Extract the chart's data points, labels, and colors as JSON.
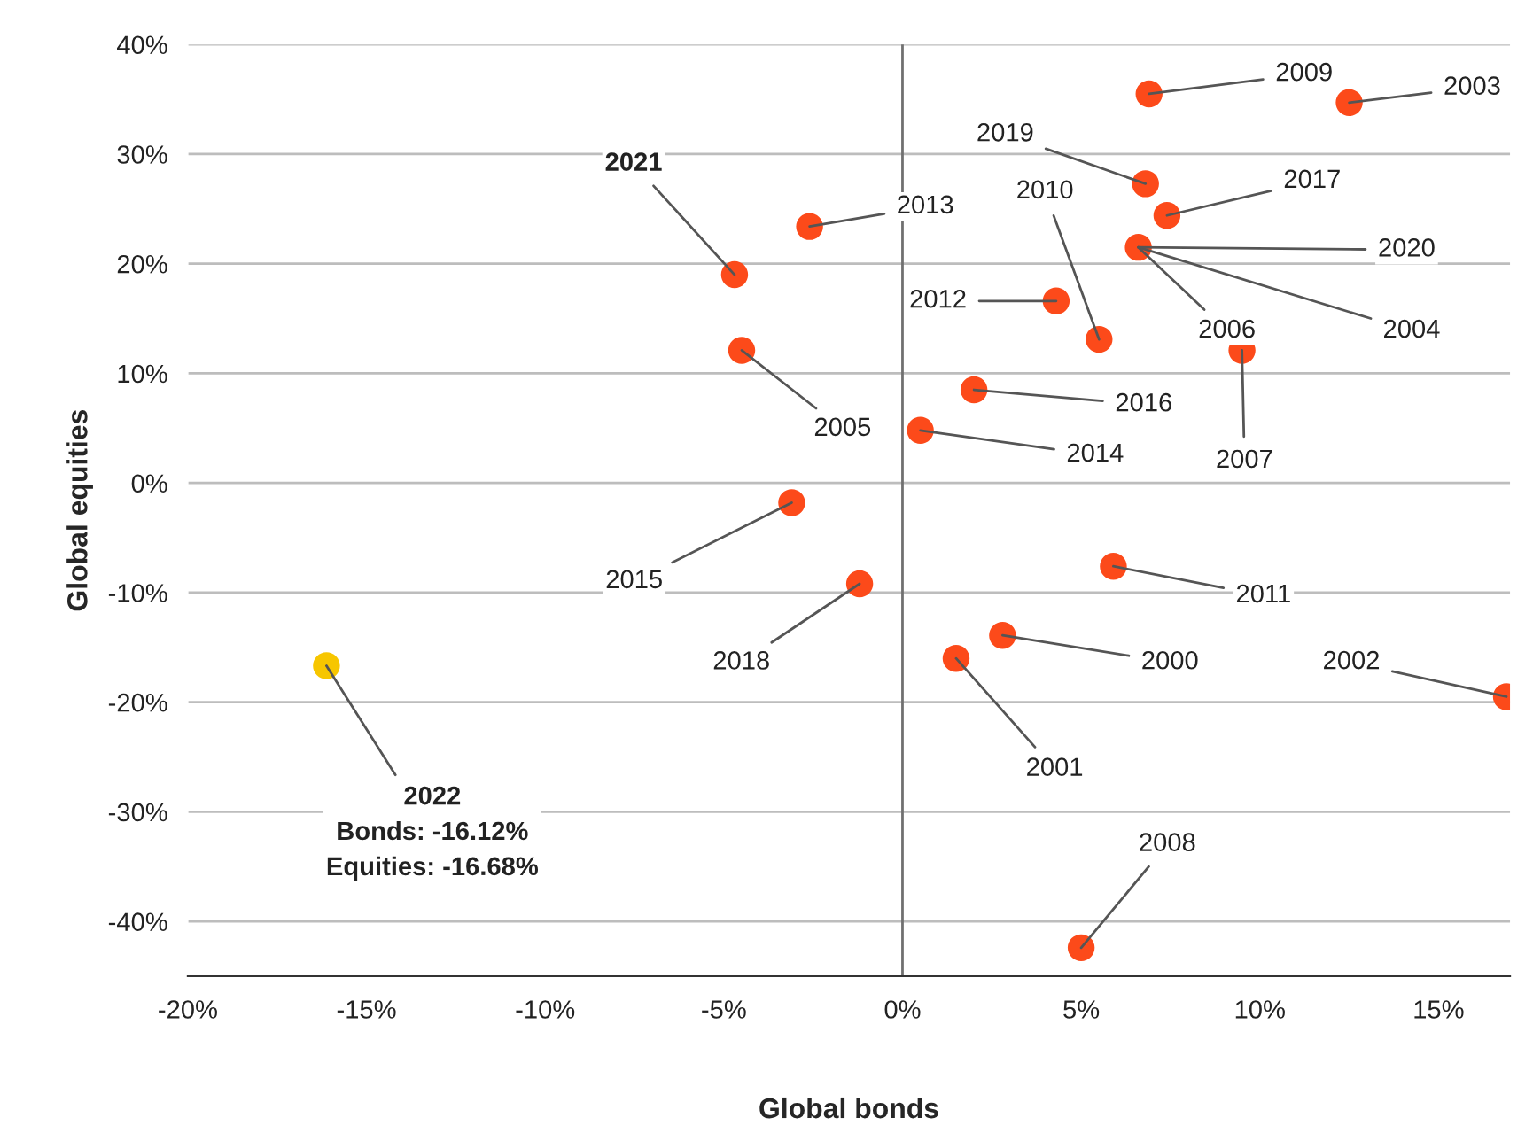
{
  "chart_data": {
    "type": "scatter",
    "xlabel": "Global bonds",
    "ylabel": "Global equities",
    "xlim": [
      -20,
      17
    ],
    "ylim": [
      -45,
      40
    ],
    "xticks": [
      {
        "value": -20,
        "label": "-20%"
      },
      {
        "value": -15,
        "label": "-15%"
      },
      {
        "value": -10,
        "label": "-10%"
      },
      {
        "value": -5,
        "label": "-5%"
      },
      {
        "value": 0,
        "label": "0%"
      },
      {
        "value": 5,
        "label": "5%"
      },
      {
        "value": 10,
        "label": "10%"
      },
      {
        "value": 15,
        "label": "15%"
      }
    ],
    "yticks": [
      {
        "value": -40,
        "label": "-40%"
      },
      {
        "value": -30,
        "label": "-30%"
      },
      {
        "value": -20,
        "label": "-20%"
      },
      {
        "value": -10,
        "label": "-10%"
      },
      {
        "value": 0,
        "label": "0%"
      },
      {
        "value": 10,
        "label": "10%"
      },
      {
        "value": 20,
        "label": "20%"
      },
      {
        "value": 30,
        "label": "30%"
      },
      {
        "value": 40,
        "label": "40%"
      }
    ],
    "grid": "y",
    "marker": "circle",
    "legend": false,
    "ref_lines": [
      {
        "axis": "x",
        "value": 0,
        "color": "#707070"
      }
    ],
    "series": [
      {
        "color": "#fc4a1a",
        "x": [
          6.9,
          12.5,
          6.8,
          7.4,
          -2.6,
          -4.7,
          6.6,
          4.3,
          5.5,
          -4.5,
          9.5,
          2.0,
          0.5,
          -3.1,
          -1.2,
          5.9,
          2.8,
          1.5,
          16.9,
          5.0
        ],
        "values": [
          35.5,
          34.7,
          27.3,
          24.4,
          23.4,
          19.0,
          21.5,
          16.6,
          13.1,
          12.1,
          12.1,
          8.5,
          4.8,
          -1.8,
          -9.2,
          -7.6,
          -13.9,
          -16.0,
          -19.5,
          -42.4
        ]
      },
      {
        "color": "#f7c600",
        "x": [
          -16.12
        ],
        "values": [
          -16.68
        ]
      }
    ],
    "annotations": [
      {
        "text": "2009",
        "x": 6.9,
        "y": 35.5
      },
      {
        "text": "2003",
        "x": 12.5,
        "y": 34.7
      },
      {
        "text": "2019",
        "x": 6.8,
        "y": 27.3
      },
      {
        "text": "2017",
        "x": 7.4,
        "y": 24.4
      },
      {
        "text": "2013",
        "x": -2.6,
        "y": 23.4
      },
      {
        "text": "2021",
        "x": -4.7,
        "y": 19.0
      },
      {
        "text": "2006",
        "x": 6.6,
        "y": 21.5
      },
      {
        "text": "2004",
        "x": 6.6,
        "y": 21.5
      },
      {
        "text": "2020",
        "x": 6.6,
        "y": 21.5
      },
      {
        "text": "2012",
        "x": 4.3,
        "y": 16.6
      },
      {
        "text": "2010",
        "x": 5.5,
        "y": 13.1
      },
      {
        "text": "2005",
        "x": -4.5,
        "y": 12.1
      },
      {
        "text": "2007",
        "x": 9.5,
        "y": 12.1
      },
      {
        "text": "2016",
        "x": 2.0,
        "y": 8.5
      },
      {
        "text": "2014",
        "x": 0.5,
        "y": 4.8
      },
      {
        "text": "2015",
        "x": -3.1,
        "y": -1.8
      },
      {
        "text": "2018",
        "x": -1.2,
        "y": -9.2
      },
      {
        "text": "2011",
        "x": 5.9,
        "y": -7.6
      },
      {
        "text": "2000",
        "x": 2.8,
        "y": -13.9
      },
      {
        "text": "2001",
        "x": 1.5,
        "y": -16.0
      },
      {
        "text": "2002",
        "x": 16.9,
        "y": -19.5
      },
      {
        "text": "2008",
        "x": 5.0,
        "y": -42.4
      },
      {
        "text": "2022\nBonds: -16.12%\nEquities: -16.68%",
        "x": -16.12,
        "y": -16.68
      }
    ]
  }
}
